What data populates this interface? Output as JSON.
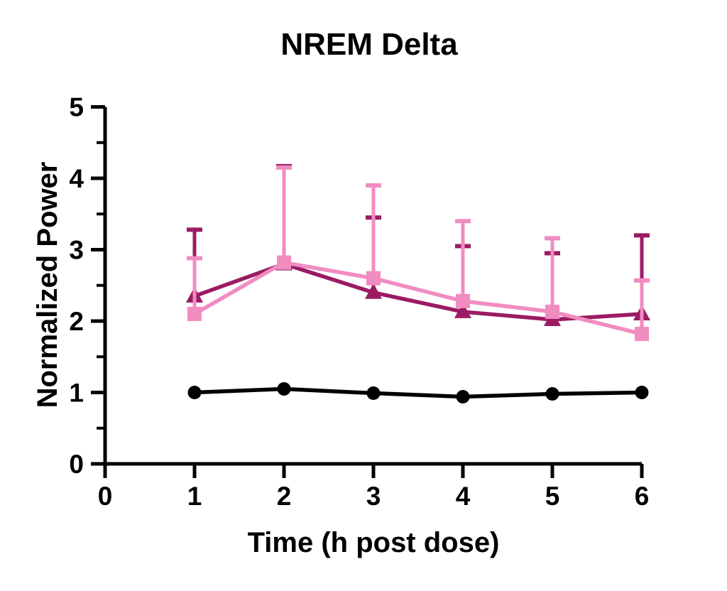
{
  "figure": {
    "background": "#ffffff",
    "title": "NREM Delta",
    "xlabel": "Time (h post dose)",
    "ylabel": "Normalized Power"
  },
  "chart_data": {
    "type": "line",
    "title": "NREM Delta",
    "xlabel": "Time (h post dose)",
    "ylabel": "Normalized Power",
    "x": [
      1,
      2,
      3,
      4,
      5,
      6
    ],
    "xlim": [
      0,
      6
    ],
    "ylim": [
      0,
      5
    ],
    "x_ticks": [
      0,
      1,
      2,
      3,
      4,
      5,
      6
    ],
    "y_ticks": [
      0,
      1,
      2,
      3,
      4,
      5
    ],
    "y_minor_tick_step": 0.5,
    "grid": false,
    "legend_position": "none",
    "error_bars": "upper_only_with_caps",
    "axis_color": "#000000",
    "series": [
      {
        "name": "black-circle-series",
        "marker": "circle",
        "color": "#000000",
        "values": [
          1.0,
          1.05,
          0.99,
          0.94,
          0.98,
          1.0
        ],
        "err_up": [
          0,
          0,
          0,
          0,
          0,
          0
        ]
      },
      {
        "name": "dark-magenta-triangle-series",
        "marker": "triangle",
        "color": "#9B1B63",
        "values": [
          2.35,
          2.8,
          2.4,
          2.13,
          2.02,
          2.1
        ],
        "err_up": [
          0.93,
          1.37,
          1.05,
          0.92,
          0.93,
          1.1
        ]
      },
      {
        "name": "pink-square-series",
        "marker": "square",
        "color": "#F18CC1",
        "values": [
          2.1,
          2.82,
          2.6,
          2.28,
          2.13,
          1.82
        ],
        "err_up": [
          0.78,
          1.33,
          1.3,
          1.12,
          1.03,
          0.75
        ]
      }
    ]
  }
}
